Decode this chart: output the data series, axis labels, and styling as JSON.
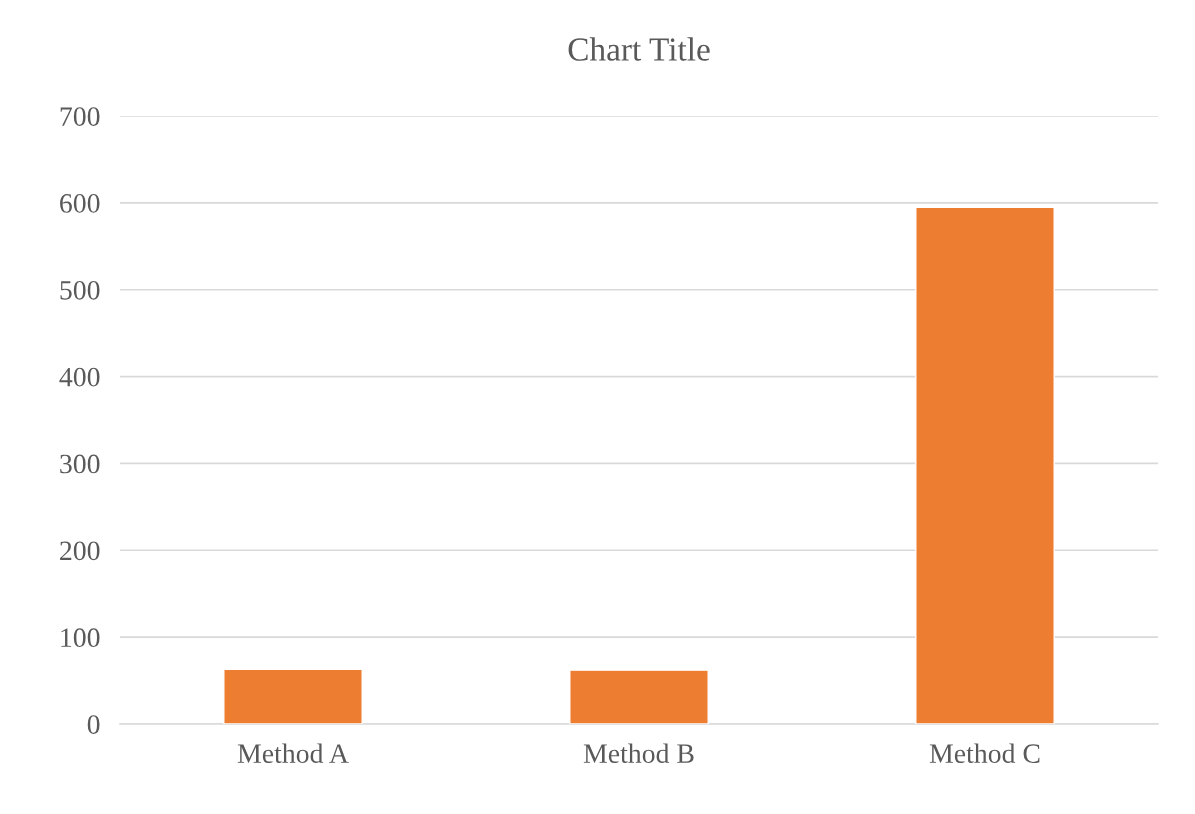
{
  "chart_data": {
    "type": "bar",
    "title": "Chart Title",
    "categories": [
      "Method A",
      "Method B",
      "Method C"
    ],
    "values": [
      63,
      62,
      595
    ],
    "color": "#ed7d31",
    "ylim": [
      0,
      700
    ],
    "yticks": [
      0,
      100,
      200,
      300,
      400,
      500,
      600,
      700
    ],
    "grid": "y"
  }
}
